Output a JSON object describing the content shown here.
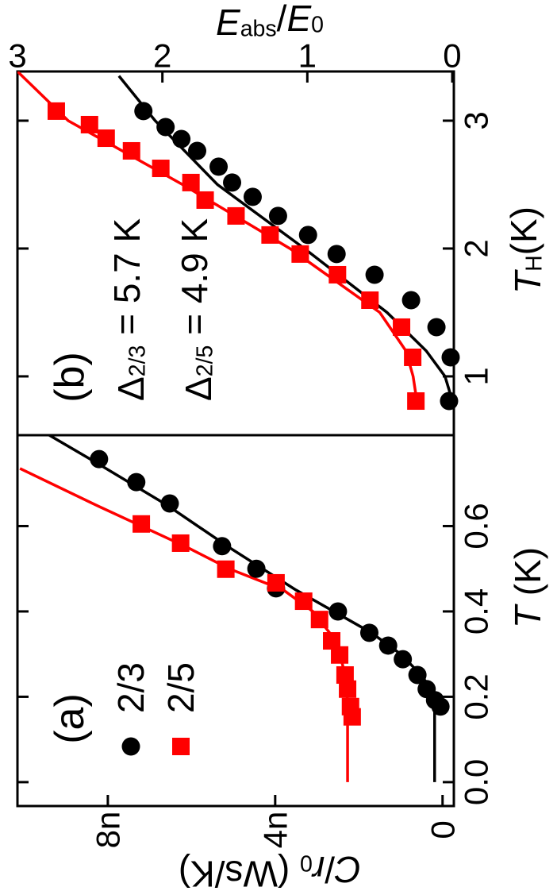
{
  "chart_data": [
    {
      "type": "scatter",
      "panel_label": "(a)",
      "x_label": [
        {
          "text": "T",
          "italic": true
        },
        {
          "text": " (K)"
        }
      ],
      "y_label": [
        {
          "text": "C",
          "italic": true
        },
        {
          "text": "/"
        },
        {
          "text": "r",
          "italic": true
        },
        {
          "text": "0",
          "sub": true
        },
        {
          "text": " (Ws/K)"
        }
      ],
      "xlim": [
        -0.056,
        0.813
      ],
      "ylim": [
        -2.7e-10,
        1.016e-08
      ],
      "xticks": [
        {
          "value": 0,
          "label": "0.0"
        },
        0.2,
        0.4,
        0.6
      ],
      "yticks": [
        0,
        {
          "value": 4e-09,
          "label": "4n"
        },
        {
          "value": 8e-09,
          "label": "8n"
        }
      ],
      "series": [
        {
          "name": "2/3",
          "color": "#000000",
          "marker": "circle",
          "x": [
            0.757,
            0.703,
            0.653,
            0.553,
            0.5,
            0.454,
            0.4,
            0.35,
            0.32,
            0.288,
            0.251,
            0.218,
            0.192,
            0.177
          ],
          "values": [
            8.21e-09,
            7.32e-09,
            6.52e-09,
            5.27e-09,
            4.45e-09,
            3.98e-09,
            2.5e-09,
            1.75e-09,
            1.3e-09,
            9.5e-10,
            6e-10,
            3.8e-10,
            1.8e-10,
            5e-11
          ]
        },
        {
          "name": "2/5",
          "color": "#ff0000",
          "marker": "square",
          "x": [
            0.605,
            0.56,
            0.499,
            0.467,
            0.424,
            0.381,
            0.331,
            0.298,
            0.251,
            0.218,
            0.177,
            0.153
          ],
          "values": [
            7.2e-09,
            6.26e-09,
            5.18e-09,
            3.98e-09,
            3.32e-09,
            2.94e-09,
            2.65e-09,
            2.46e-09,
            2.33e-09,
            2.27e-09,
            2.2e-09,
            2.16e-09
          ]
        }
      ],
      "fits": [
        {
          "color": "#000000",
          "x": [
            0.813,
            0.75,
            0.65,
            0.55,
            0.45,
            0.4,
            0.35,
            0.3,
            0.25,
            0.22,
            0.2,
            0.19,
            0.0
          ],
          "values": [
            9.4e-09,
            8.3e-09,
            6.6e-09,
            5.1e-09,
            3.5e-09,
            2.6e-09,
            1.7e-09,
            1e-09,
            5e-10,
            3e-10,
            2e-10,
            1.9e-10,
            1.9e-10
          ]
        },
        {
          "color": "#ff0000",
          "x": [
            0.735,
            0.65,
            0.6,
            0.55,
            0.5,
            0.45,
            0.4,
            0.35,
            0.3,
            0.25,
            0.2,
            0.16,
            0.0
          ],
          "values": [
            1.01e-08,
            8.3e-09,
            7.2e-09,
            6.1e-09,
            5.1e-09,
            3.8e-09,
            3.1e-09,
            2.7e-09,
            2.45e-09,
            2.33e-09,
            2.28e-09,
            2.27e-09,
            2.27e-09
          ]
        }
      ]
    },
    {
      "type": "scatter",
      "panel_label": "(b)",
      "x_label": [
        {
          "text": "T",
          "italic": true
        },
        {
          "text": "H",
          "sub": true
        },
        {
          "text": "(K)"
        }
      ],
      "y_label": [
        {
          "text": "E",
          "italic": true
        },
        {
          "text": "abs",
          "sub": true
        },
        {
          "text": "/"
        },
        {
          "text": "E",
          "italic": true
        },
        {
          "text": "0",
          "sub": true
        }
      ],
      "xlim": [
        0.54,
        3.385
      ],
      "ylim": [
        -0.011,
        3.0
      ],
      "xticks": [
        1,
        2,
        3
      ],
      "yticks": [
        0,
        1,
        2,
        3
      ],
      "annotations": [
        [
          {
            "text": "Δ"
          },
          {
            "text": "2/3",
            "sub": true
          },
          {
            "text": " = 5.7 K"
          }
        ],
        [
          {
            "text": "Δ"
          },
          {
            "text": "2/5",
            "sub": true
          },
          {
            "text": " = 4.9 K"
          }
        ]
      ],
      "series": [
        {
          "color": "#000000",
          "marker": "circle",
          "x": [
            3.075,
            2.95,
            2.857,
            2.764,
            2.64,
            2.516,
            2.404,
            2.255,
            2.106,
            1.957,
            1.795,
            1.596,
            1.385,
            1.149,
            0.807
          ],
          "values": [
            2.131,
            1.978,
            1.869,
            1.76,
            1.612,
            1.519,
            1.377,
            1.202,
            0.995,
            0.798,
            0.536,
            0.284,
            0.109,
            0.011,
            0.022
          ]
        },
        {
          "color": "#ff0000",
          "marker": "square",
          "x": [
            3.075,
            2.969,
            2.863,
            2.764,
            2.627,
            2.516,
            2.379,
            2.255,
            2.106,
            1.957,
            1.795,
            1.596,
            1.385,
            1.149,
            0.807
          ],
          "values": [
            2.732,
            2.503,
            2.388,
            2.213,
            2.011,
            1.803,
            1.705,
            1.492,
            1.257,
            1.049,
            0.792,
            0.568,
            0.35,
            0.273,
            0.251
          ]
        }
      ],
      "fits": [
        {
          "color": "#000000",
          "x": [
            3.35,
            3.0,
            2.5,
            2.0,
            1.5,
            1.2,
            1.0,
            0.85,
            0.8
          ],
          "values": [
            2.3,
            2.05,
            1.62,
            1.02,
            0.45,
            0.18,
            0.05,
            0.01,
            0.0
          ]
        },
        {
          "color": "#ff0000",
          "x": [
            3.385,
            3.0,
            2.5,
            2.0,
            1.5,
            1.2,
            1.0,
            0.85,
            0.8
          ],
          "values": [
            3.0,
            2.65,
            1.86,
            1.12,
            0.5,
            0.32,
            0.27,
            0.25,
            0.25
          ]
        }
      ]
    }
  ]
}
